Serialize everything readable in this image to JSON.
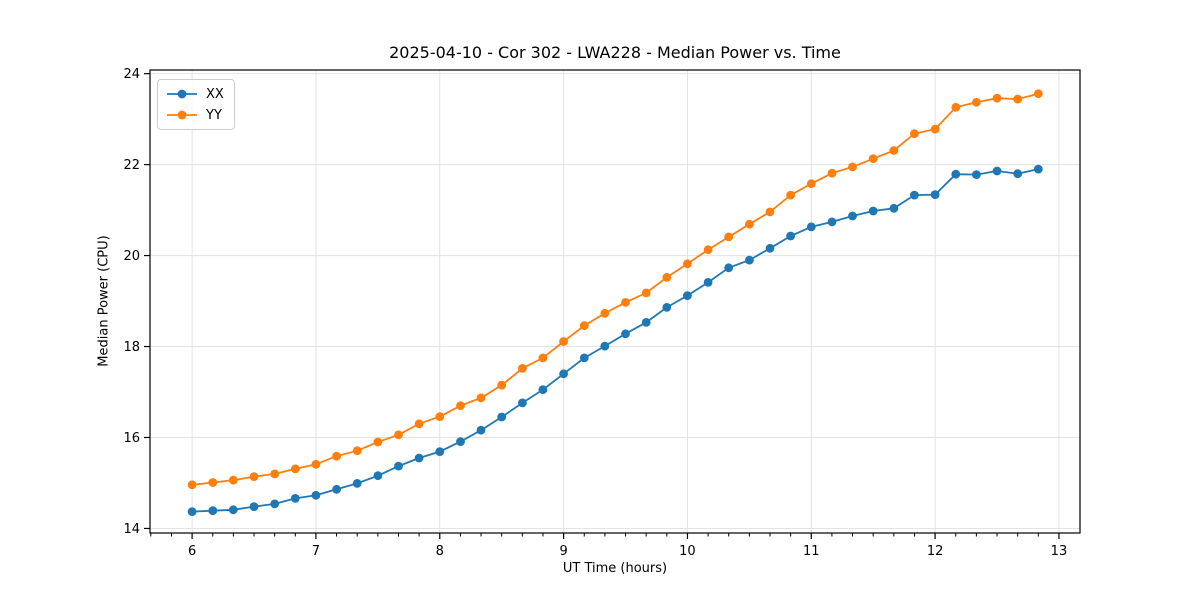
{
  "chart_data": {
    "type": "line",
    "title": "2025-04-10 - Cor 302 - LWA228 - Median Power vs. Time",
    "xlabel": "UT Time (hours)",
    "ylabel": "Median Power (CPU)",
    "xlim": [
      5.66,
      13.17
    ],
    "ylim": [
      13.9,
      24.08
    ],
    "xticks": [
      6,
      7,
      8,
      9,
      10,
      11,
      12,
      13
    ],
    "yticks": [
      14,
      16,
      18,
      20,
      22,
      24
    ],
    "x_minor_divisions": 6,
    "grid": true,
    "grid_color": "#e3e3e3",
    "spine_color": "#000000",
    "legend_position": "upper-left",
    "x": [
      6.0,
      6.167,
      6.333,
      6.5,
      6.667,
      6.833,
      7.0,
      7.167,
      7.333,
      7.5,
      7.667,
      7.833,
      8.0,
      8.167,
      8.333,
      8.5,
      8.667,
      8.833,
      9.0,
      9.167,
      9.333,
      9.5,
      9.667,
      9.833,
      10.0,
      10.167,
      10.333,
      10.5,
      10.667,
      10.833,
      11.0,
      11.167,
      11.333,
      11.5,
      11.667,
      11.833,
      12.0,
      12.167,
      12.333,
      12.5,
      12.667,
      12.833
    ],
    "series": [
      {
        "name": "XX",
        "color": "#1f77b4",
        "marker": "circle",
        "values": [
          14.37,
          14.39,
          14.41,
          14.48,
          14.54,
          14.66,
          14.73,
          14.86,
          14.99,
          15.16,
          15.37,
          15.55,
          15.69,
          15.91,
          16.16,
          16.45,
          16.76,
          17.05,
          17.4,
          17.75,
          18.01,
          18.28,
          18.53,
          18.86,
          19.12,
          19.41,
          19.73,
          19.9,
          20.16,
          20.43,
          20.63,
          20.74,
          20.87,
          20.98,
          21.04,
          21.33,
          21.34,
          21.79,
          21.78,
          21.86,
          21.8,
          21.9
        ]
      },
      {
        "name": "YY",
        "color": "#ff7f0e",
        "marker": "circle",
        "values": [
          14.96,
          15.01,
          15.06,
          15.14,
          15.2,
          15.31,
          15.41,
          15.59,
          15.71,
          15.9,
          16.06,
          16.3,
          16.46,
          16.7,
          16.87,
          17.15,
          17.52,
          17.75,
          18.11,
          18.46,
          18.73,
          18.97,
          19.18,
          19.52,
          19.82,
          20.13,
          20.41,
          20.69,
          20.96,
          21.33,
          21.58,
          21.81,
          21.95,
          22.13,
          22.31,
          22.68,
          22.78,
          23.26,
          23.37,
          23.46,
          23.44,
          23.56
        ]
      }
    ]
  }
}
